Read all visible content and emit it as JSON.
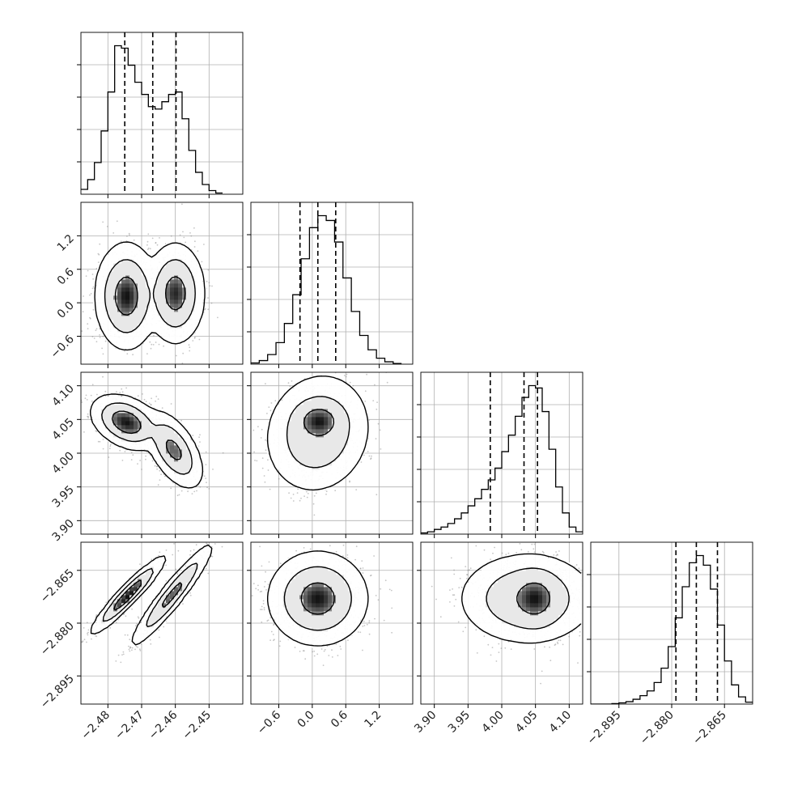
{
  "chart_data": {
    "type": "corner",
    "title": "",
    "parameters": [
      {
        "name": "",
        "range": [
          -2.488,
          -2.44
        ],
        "ticks": [
          -2.48,
          -2.47,
          -2.46,
          -2.45
        ],
        "tick_labels": [
          "−2.48",
          "−2.47",
          "−2.46",
          "−2.45"
        ]
      },
      {
        "name": "",
        "range": [
          -1.1,
          1.8
        ],
        "ticks": [
          -0.6,
          0.0,
          0.6,
          1.2
        ],
        "tick_labels": [
          "−0.6",
          "0.0",
          "0.6",
          "1.2"
        ]
      },
      {
        "name": "",
        "range": [
          3.88,
          4.12
        ],
        "ticks": [
          3.9,
          3.95,
          4.0,
          4.05,
          4.1
        ],
        "tick_labels": [
          "3.90",
          "3.95",
          "4.00",
          "4.05",
          "4.10"
        ]
      },
      {
        "name": "",
        "range": [
          -2.903,
          -2.857
        ],
        "ticks": [
          -2.895,
          -2.88,
          -2.865
        ],
        "tick_labels": [
          "−2.895",
          "−2.880",
          "−2.865"
        ]
      }
    ],
    "quantiles": [
      [
        -2.475,
        -2.4667,
        -2.4598
      ],
      [
        -0.22,
        0.1,
        0.42
      ],
      [
        3.983,
        4.033,
        4.053
      ],
      [
        -2.8788,
        -2.873,
        -2.867
      ]
    ],
    "histograms": [
      {
        "bin_edges": [
          -2.488,
          -2.486,
          -2.484,
          -2.482,
          -2.48,
          -2.478,
          -2.476,
          -2.474,
          -2.472,
          -2.47,
          -2.468,
          -2.466,
          -2.464,
          -2.462,
          -2.46,
          -2.458,
          -2.456,
          -2.454,
          -2.452,
          -2.45,
          -2.448,
          -2.446
        ],
        "counts": [
          0.2,
          0.6,
          1.3,
          2.6,
          4.2,
          6.1,
          6.0,
          5.3,
          4.6,
          4.1,
          3.6,
          3.5,
          3.8,
          4.1,
          4.2,
          3.1,
          1.8,
          0.9,
          0.4,
          0.15,
          0.05
        ]
      },
      {
        "bin_edges": [
          -1.1,
          -0.95,
          -0.8,
          -0.65,
          -0.5,
          -0.35,
          -0.2,
          -0.05,
          0.1,
          0.25,
          0.4,
          0.55,
          0.7,
          0.85,
          1.0,
          1.15,
          1.3,
          1.45,
          1.6
        ],
        "counts": [
          0.05,
          0.15,
          0.4,
          0.9,
          1.7,
          2.9,
          4.4,
          5.7,
          6.2,
          6.0,
          5.1,
          3.6,
          2.2,
          1.2,
          0.6,
          0.25,
          0.1,
          0.03
        ]
      },
      {
        "bin_edges": [
          3.88,
          3.89,
          3.9,
          3.91,
          3.92,
          3.93,
          3.94,
          3.95,
          3.96,
          3.97,
          3.98,
          3.99,
          4.0,
          4.01,
          4.02,
          4.03,
          4.04,
          4.05,
          4.06,
          4.07,
          4.08,
          4.09,
          4.1,
          4.11,
          4.12
        ],
        "counts": [
          0.05,
          0.1,
          0.2,
          0.3,
          0.45,
          0.65,
          0.9,
          1.2,
          1.5,
          1.9,
          2.3,
          2.8,
          3.5,
          4.2,
          5.0,
          5.8,
          6.3,
          6.2,
          5.2,
          3.6,
          2.0,
          0.9,
          0.3,
          0.1
        ]
      },
      {
        "bin_edges": [
          -2.903,
          -2.901,
          -2.899,
          -2.897,
          -2.895,
          -2.893,
          -2.891,
          -2.889,
          -2.887,
          -2.885,
          -2.883,
          -2.881,
          -2.879,
          -2.877,
          -2.875,
          -2.873,
          -2.871,
          -2.869,
          -2.867,
          -2.865,
          -2.863,
          -2.861,
          -2.859,
          -2.857
        ],
        "counts": [
          0,
          0,
          0,
          0.02,
          0.05,
          0.1,
          0.2,
          0.35,
          0.55,
          0.9,
          1.5,
          2.4,
          3.6,
          4.9,
          5.9,
          6.2,
          5.8,
          4.8,
          3.3,
          1.8,
          0.8,
          0.3,
          0.08
        ]
      }
    ],
    "pairs": [
      {
        "row": 1,
        "col": 0,
        "components": [
          {
            "mx": -2.4745,
            "my": 0.12,
            "sx": 0.0032,
            "sy": 0.33,
            "rho": 0.0,
            "w": 1.1
          },
          {
            "mx": -2.46,
            "my": 0.17,
            "sx": 0.003,
            "sy": 0.31,
            "rho": 0.0,
            "w": 0.9
          }
        ]
      },
      {
        "row": 2,
        "col": 0,
        "components": [
          {
            "mx": -2.4745,
            "my": 4.046,
            "sx": 0.0036,
            "sy": 0.014,
            "rho": -0.35,
            "w": 1.2
          },
          {
            "mx": -2.4605,
            "my": 4.005,
            "sx": 0.003,
            "sy": 0.02,
            "rho": -0.55,
            "w": 0.85
          }
        ]
      },
      {
        "row": 3,
        "col": 0,
        "components": [
          {
            "mx": -2.474,
            "my": -2.872,
            "sx": 0.0036,
            "sy": 0.0036,
            "rho": 0.94,
            "w": 1.0
          },
          {
            "mx": -2.461,
            "my": -2.872,
            "sx": 0.004,
            "sy": 0.0048,
            "rho": 0.94,
            "w": 1.0
          }
        ]
      },
      {
        "row": 2,
        "col": 1,
        "components": [
          {
            "mx": 0.1,
            "my": 4.03,
            "sx": 0.32,
            "sy": 0.03,
            "rho": 0.1,
            "w": 1.0
          },
          {
            "mx": 0.12,
            "my": 4.048,
            "sx": 0.18,
            "sy": 0.012,
            "rho": 0.0,
            "w": 0.6
          }
        ]
      },
      {
        "row": 3,
        "col": 1,
        "components": [
          {
            "mx": 0.1,
            "my": -2.873,
            "sx": 0.3,
            "sy": 0.0045,
            "rho": 0.0,
            "w": 1.0
          }
        ]
      },
      {
        "row": 3,
        "col": 2,
        "components": [
          {
            "mx": 4.038,
            "my": -2.873,
            "sx": 0.035,
            "sy": 0.0045,
            "rho": 0.0,
            "w": 1.0
          },
          {
            "mx": 4.05,
            "my": -2.873,
            "sx": 0.016,
            "sy": 0.0035,
            "rho": 0.0,
            "w": 0.5
          }
        ]
      }
    ],
    "contour_levels": [
      0.393,
      0.865,
      0.989
    ],
    "grid": true,
    "line_color": "#000000",
    "point_color": "#808080"
  }
}
